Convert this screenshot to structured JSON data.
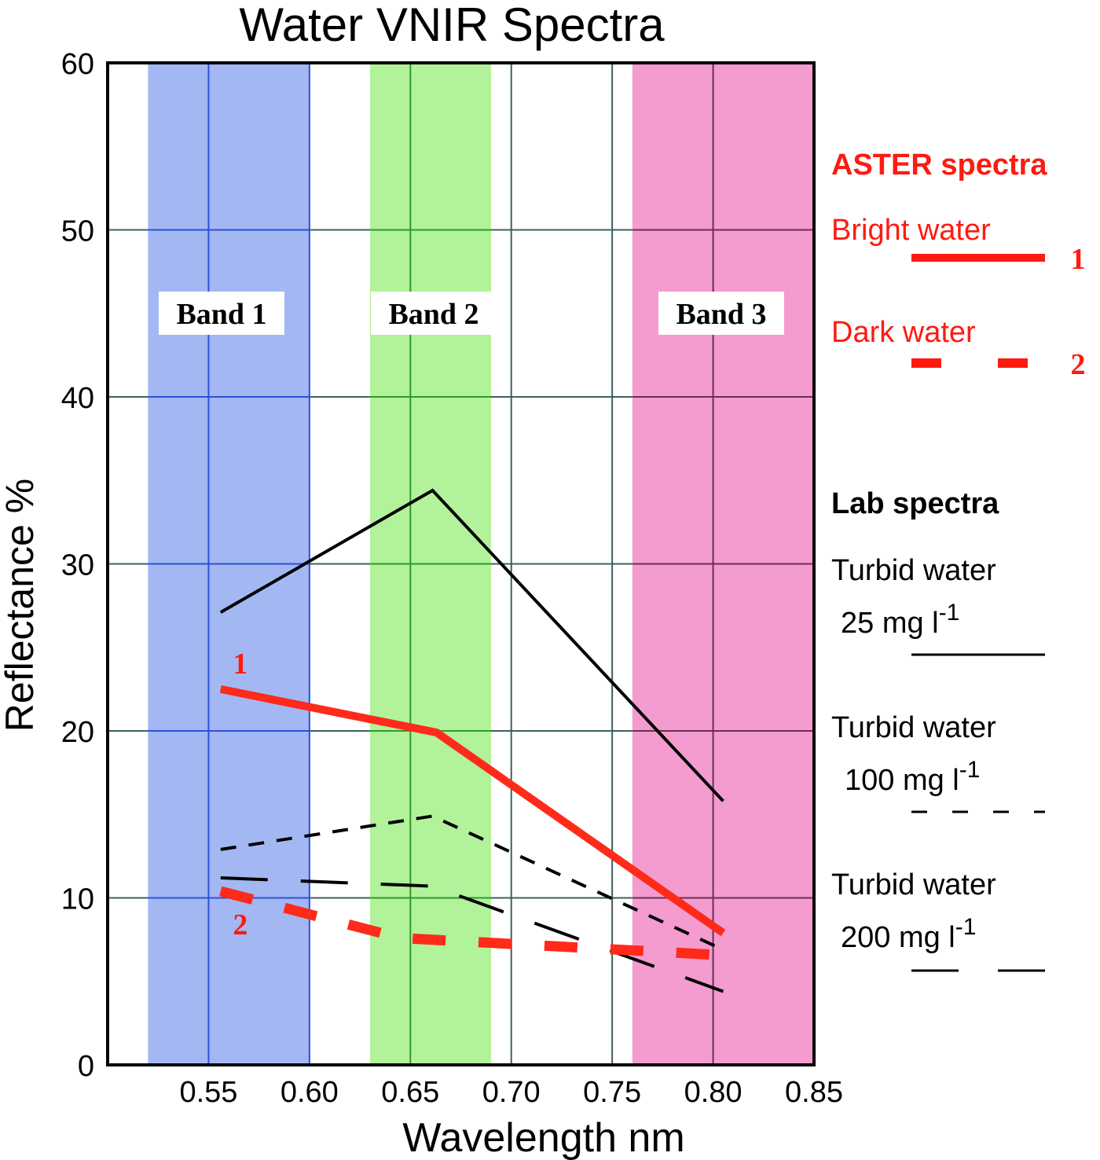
{
  "chart_data": {
    "type": "line",
    "title": "Water VNIR Spectra",
    "xlabel": "Wavelength nm",
    "ylabel": "Reflectance %",
    "xlim": [
      0.5,
      0.85
    ],
    "ylim": [
      0,
      60
    ],
    "xticks": [
      {
        "value": 0.55,
        "label": "0.55"
      },
      {
        "value": 0.6,
        "label": "0.60"
      },
      {
        "value": 0.65,
        "label": "0.65"
      },
      {
        "value": 0.7,
        "label": "0.70"
      },
      {
        "value": 0.75,
        "label": "0.75"
      },
      {
        "value": 0.8,
        "label": "0.80"
      },
      {
        "value": 0.85,
        "label": "0.85"
      }
    ],
    "yticks": [
      {
        "value": 0,
        "label": "0"
      },
      {
        "value": 10,
        "label": "10"
      },
      {
        "value": 20,
        "label": "20"
      },
      {
        "value": 30,
        "label": "30"
      },
      {
        "value": 40,
        "label": "40"
      },
      {
        "value": 50,
        "label": "50"
      },
      {
        "value": 60,
        "label": "60"
      }
    ],
    "grid": true,
    "bands": [
      {
        "name": "Band 1",
        "range": [
          0.52,
          0.6
        ],
        "color": "#a3b8f2",
        "grid_color": "#2c4fd8"
      },
      {
        "name": "Band 2",
        "range": [
          0.63,
          0.69
        ],
        "color": "#b2f29a",
        "grid_color": "#2f9a2f"
      },
      {
        "name": "Band 3",
        "range": [
          0.76,
          0.86
        ],
        "color": "#f49bcf",
        "grid_color": "#6a3050"
      }
    ],
    "series": [
      {
        "name": "Turbid water 25 mg l-1",
        "style": "solid",
        "color": "#000000",
        "x": [
          0.556,
          0.661,
          0.805
        ],
        "y": [
          27.1,
          34.4,
          15.8
        ]
      },
      {
        "name": "Bright water",
        "style": "thick-solid",
        "color": "#ff2a1a",
        "label": "1",
        "x": [
          0.556,
          0.663,
          0.805
        ],
        "y": [
          22.5,
          19.9,
          7.9
        ]
      },
      {
        "name": "Turbid water 100 mg l-1",
        "style": "short-dash",
        "color": "#000000",
        "x": [
          0.556,
          0.661,
          0.805
        ],
        "y": [
          12.9,
          14.9,
          6.9
        ]
      },
      {
        "name": "Turbid water 200 mg l-1",
        "style": "long-dash",
        "color": "#000000",
        "x": [
          0.556,
          0.661,
          0.805
        ],
        "y": [
          11.2,
          10.7,
          4.4
        ]
      },
      {
        "name": "Dark water",
        "style": "thick-dash",
        "color": "#ff2a1a",
        "label": "2",
        "x": [
          0.556,
          0.645,
          0.8
        ],
        "y": [
          10.4,
          7.6,
          6.6
        ]
      }
    ],
    "legend": {
      "placement": "right",
      "aster_heading": "ASTER spectra",
      "lab_heading": "Lab spectra",
      "items": [
        {
          "group": "aster",
          "label": "Bright water",
          "number": "1",
          "style": "thick-solid"
        },
        {
          "group": "aster",
          "label": "Dark water",
          "number": "2",
          "style": "thick-dash"
        },
        {
          "group": "lab",
          "label_line1": "Turbid water",
          "label_line2": "25 mg l",
          "sup": "-1",
          "style": "solid"
        },
        {
          "group": "lab",
          "label_line1": "Turbid water",
          "label_line2": "100 mg l",
          "sup": "-1",
          "style": "short-dash"
        },
        {
          "group": "lab",
          "label_line1": "Turbid water",
          "label_line2": "200 mg l",
          "sup": "-1",
          "style": "long-dash"
        }
      ]
    }
  }
}
